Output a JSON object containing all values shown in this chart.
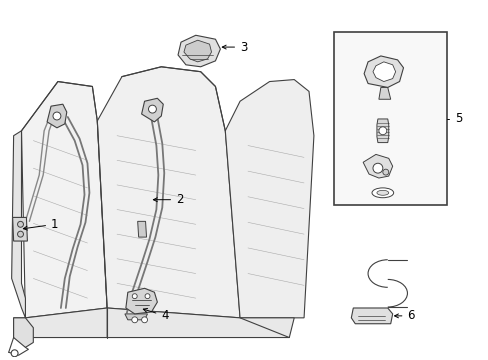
{
  "background_color": "#ffffff",
  "line_color": "#404040",
  "label_color": "#000000",
  "fig_width": 4.89,
  "fig_height": 3.6,
  "dpi": 100,
  "label_fontsize": 8.5,
  "arrow_color": "#000000",
  "lw": 0.8
}
